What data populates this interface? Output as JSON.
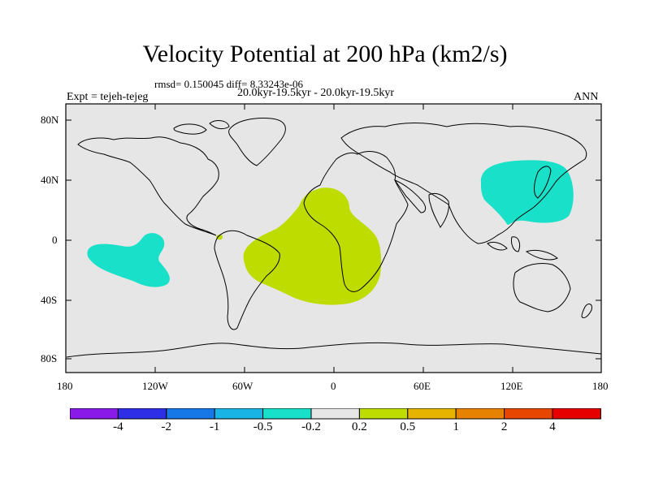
{
  "title": "Velocity Potential at 200 hPa (km2/s)",
  "subtitle_stats": "rmsd= 0.150045 diff= 8.33243e-06",
  "period": "20.0kyr-19.5kyr - 20.0kyr-19.5kyr",
  "experiment_label": "Expt = tejeh-tejeg",
  "season": "ANN",
  "lat_ticks": [
    "80N",
    "40N",
    "0",
    "40S",
    "80S"
  ],
  "lon_ticks": [
    "180",
    "120W",
    "60W",
    "0",
    "60E",
    "120E",
    "180"
  ],
  "colorbar": {
    "colors": [
      "#8a1ae8",
      "#2e2ee6",
      "#1677e6",
      "#19b4e6",
      "#19e0c8",
      "#e6e6e6",
      "#bedc00",
      "#e6b400",
      "#e68200",
      "#e64600",
      "#e60000"
    ],
    "labels": [
      "-4",
      "-2",
      "-1",
      "-0.5",
      "-0.2",
      "0.2",
      "0.5",
      "1",
      "2",
      "4"
    ]
  },
  "colors": {
    "negative_region": "#19e0c8",
    "positive_region": "#bedc00",
    "background": "#e6e6e6"
  },
  "regions": [
    {
      "name": "central-pacific-negative",
      "sign": "negative",
      "value_bin": "-0.5 to -0.2"
    },
    {
      "name": "atlantic-africa-positive",
      "sign": "positive",
      "value_bin": "0.2 to 0.5"
    },
    {
      "name": "east-asia-negative",
      "sign": "negative",
      "value_bin": "-0.5 to -0.2"
    }
  ]
}
